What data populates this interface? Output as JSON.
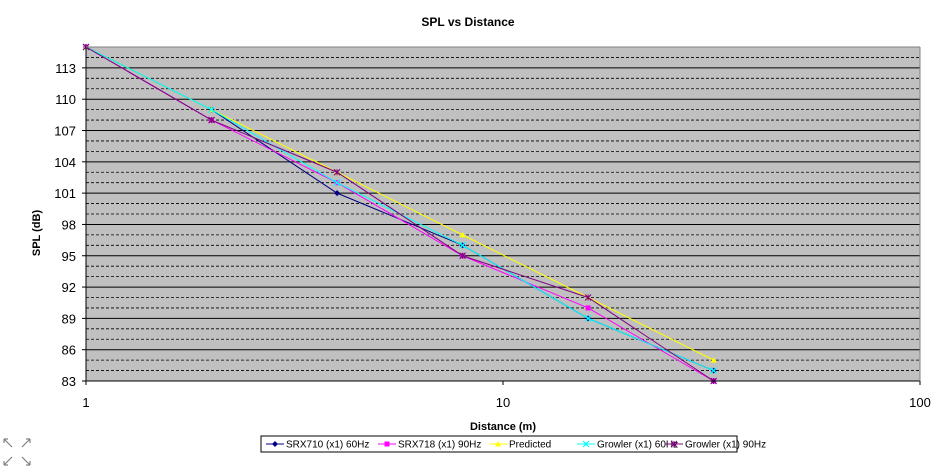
{
  "chart_data": {
    "type": "line",
    "title": "SPL vs Distance",
    "xlabel": "Distance (m)",
    "ylabel": "SPL (dB)",
    "x_scale": "log",
    "xlim": [
      1,
      100
    ],
    "ylim": [
      83,
      115
    ],
    "x_ticks": [
      "1",
      "10",
      "100"
    ],
    "y_ticks": [
      "83",
      "86",
      "89",
      "92",
      "95",
      "98",
      "101",
      "104",
      "107",
      "110",
      "113"
    ],
    "grid": "horizontal major solid and minor dashed",
    "plot_background": "#c0c0c0",
    "legend_position": "bottom",
    "series": [
      {
        "name": "SRX710 (x1) 60Hz",
        "color": "#000080",
        "marker": "diamond",
        "x": [
          1,
          2,
          4,
          8,
          16,
          32
        ],
        "y": [
          115,
          109,
          101,
          96,
          89,
          84
        ]
      },
      {
        "name": "SRX718 (x1) 90Hz",
        "color": "#ff00ff",
        "marker": "square",
        "x": [
          1,
          2,
          4,
          8,
          16,
          32
        ],
        "y": [
          115,
          108,
          102,
          95,
          90,
          83
        ]
      },
      {
        "name": "Predicted",
        "color": "#ffff00",
        "marker": "triangle",
        "x": [
          1,
          2,
          4,
          8,
          16,
          32
        ],
        "y": [
          115,
          109,
          103,
          97,
          91,
          85
        ]
      },
      {
        "name": "Growler (x1) 60Hz",
        "color": "#00ffff",
        "marker": "x",
        "x": [
          1,
          2,
          4,
          8,
          16,
          32
        ],
        "y": [
          115,
          109,
          102,
          96,
          89,
          84
        ]
      },
      {
        "name": "Growler (x1) 90Hz",
        "color": "#800080",
        "marker": "star",
        "x": [
          1,
          2,
          4,
          8,
          16,
          32
        ],
        "y": [
          115,
          108,
          103,
          95,
          91,
          83
        ]
      }
    ]
  }
}
